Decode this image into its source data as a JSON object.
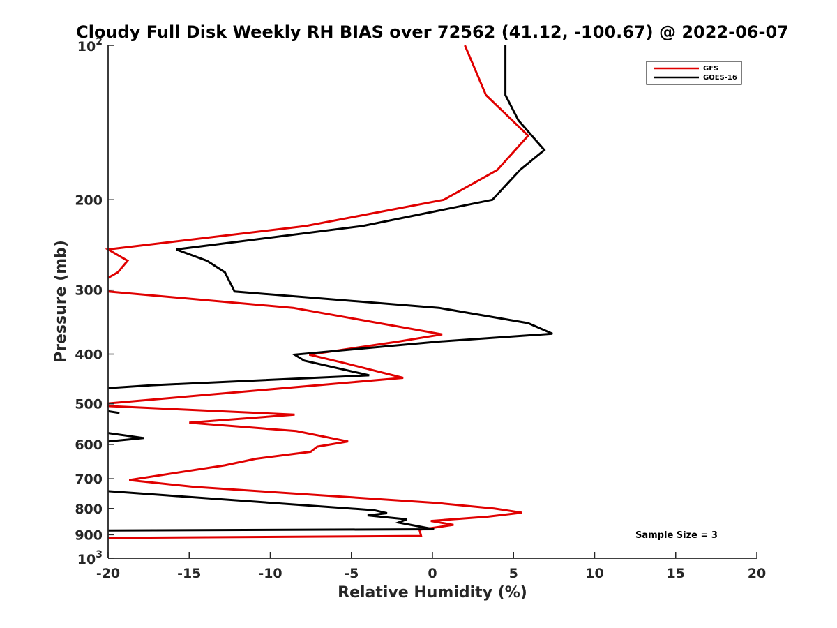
{
  "chart_data": {
    "type": "line",
    "title": "Cloudy Full Disk Weekly RH BIAS over 72562 (41.12, -100.67) @ 2022-06-07",
    "xlabel": "Relative Humidity (%)",
    "ylabel": "Pressure (mb)",
    "xlim": [
      -20,
      20
    ],
    "ylim": [
      100,
      1000
    ],
    "y_scale": "log",
    "y_reversed": true,
    "grid": false,
    "legend_position": "top-right",
    "x_ticks": [
      "-20",
      "-15",
      "-10",
      "-5",
      "0",
      "5",
      "10",
      "15",
      "20"
    ],
    "y_ticks": [
      {
        "value": 100,
        "base": "10",
        "exp": "2"
      },
      {
        "value": 200,
        "label": "200"
      },
      {
        "value": 300,
        "label": "300"
      },
      {
        "value": 400,
        "label": "400"
      },
      {
        "value": 500,
        "label": "500"
      },
      {
        "value": 600,
        "label": "600"
      },
      {
        "value": 700,
        "label": "700"
      },
      {
        "value": 800,
        "label": "800"
      },
      {
        "value": 900,
        "label": "900"
      },
      {
        "value": 1000,
        "base": "10",
        "exp": "3"
      }
    ],
    "series": [
      {
        "name": "GFS",
        "color": "#e00000",
        "points": [
          [
            2.0,
            100
          ],
          [
            3.3,
            125
          ],
          [
            5.9,
            150
          ],
          [
            4.0,
            175
          ],
          [
            0.7,
            200
          ],
          [
            -7.8,
            225
          ],
          [
            -20.0,
            250
          ],
          [
            -18.8,
            263
          ],
          [
            -19.4,
            277
          ],
          [
            -20.0,
            284
          ],
          null,
          [
            -20.0,
            302
          ],
          [
            -8.6,
            325
          ],
          [
            0.6,
            366
          ],
          [
            -2.1,
            378
          ],
          [
            -7.6,
            401
          ],
          [
            -5.6,
            415
          ],
          [
            -1.8,
            445
          ],
          [
            -10.5,
            470
          ],
          [
            -20.0,
            499
          ],
          [
            -20.0,
            505
          ],
          [
            -8.5,
            525
          ],
          [
            -15.0,
            544
          ],
          [
            -8.4,
            565
          ],
          [
            -5.2,
            592
          ],
          [
            -7.1,
            606
          ],
          [
            -7.5,
            620
          ],
          [
            -10.9,
            640
          ],
          [
            -12.8,
            659
          ],
          [
            -18.7,
            704
          ],
          [
            -14.7,
            726
          ],
          [
            0.2,
            780
          ],
          [
            3.8,
            800
          ],
          [
            5.5,
            815
          ],
          [
            3.4,
            830
          ],
          [
            -0.1,
            846
          ],
          [
            1.3,
            861
          ],
          [
            -0.8,
            880
          ],
          [
            -0.7,
            905
          ],
          [
            -20.0,
            913
          ]
        ]
      },
      {
        "name": "GOES-16",
        "color": "#000000",
        "points": [
          [
            4.5,
            100
          ],
          [
            4.5,
            125
          ],
          [
            5.3,
            140
          ],
          [
            6.9,
            160
          ],
          [
            5.4,
            175
          ],
          [
            3.7,
            200
          ],
          [
            -4.3,
            225
          ],
          [
            -15.8,
            250
          ],
          [
            -13.9,
            263
          ],
          [
            -12.8,
            277
          ],
          [
            -12.2,
            302
          ],
          [
            0.4,
            325
          ],
          [
            5.9,
            348
          ],
          [
            7.4,
            365
          ],
          [
            0.4,
            378
          ],
          [
            -8.5,
            401
          ],
          [
            -7.9,
            412
          ],
          [
            -3.9,
            440
          ],
          [
            -17.3,
            460
          ],
          [
            -20.0,
            466
          ],
          null,
          [
            -20.0,
            517
          ],
          [
            -19.3,
            521
          ],
          null,
          [
            -20.0,
            570
          ],
          [
            -17.8,
            583
          ],
          [
            -20.0,
            592
          ],
          null,
          [
            -20.0,
            740
          ],
          [
            -16.4,
            754
          ],
          [
            -3.6,
            806
          ],
          [
            -2.8,
            817
          ],
          [
            -4.0,
            825
          ],
          [
            -1.6,
            840
          ],
          [
            -2.1,
            852
          ],
          [
            0.1,
            878
          ],
          [
            -20.0,
            883
          ]
        ]
      }
    ],
    "annotation": "Sample Size = 3"
  }
}
